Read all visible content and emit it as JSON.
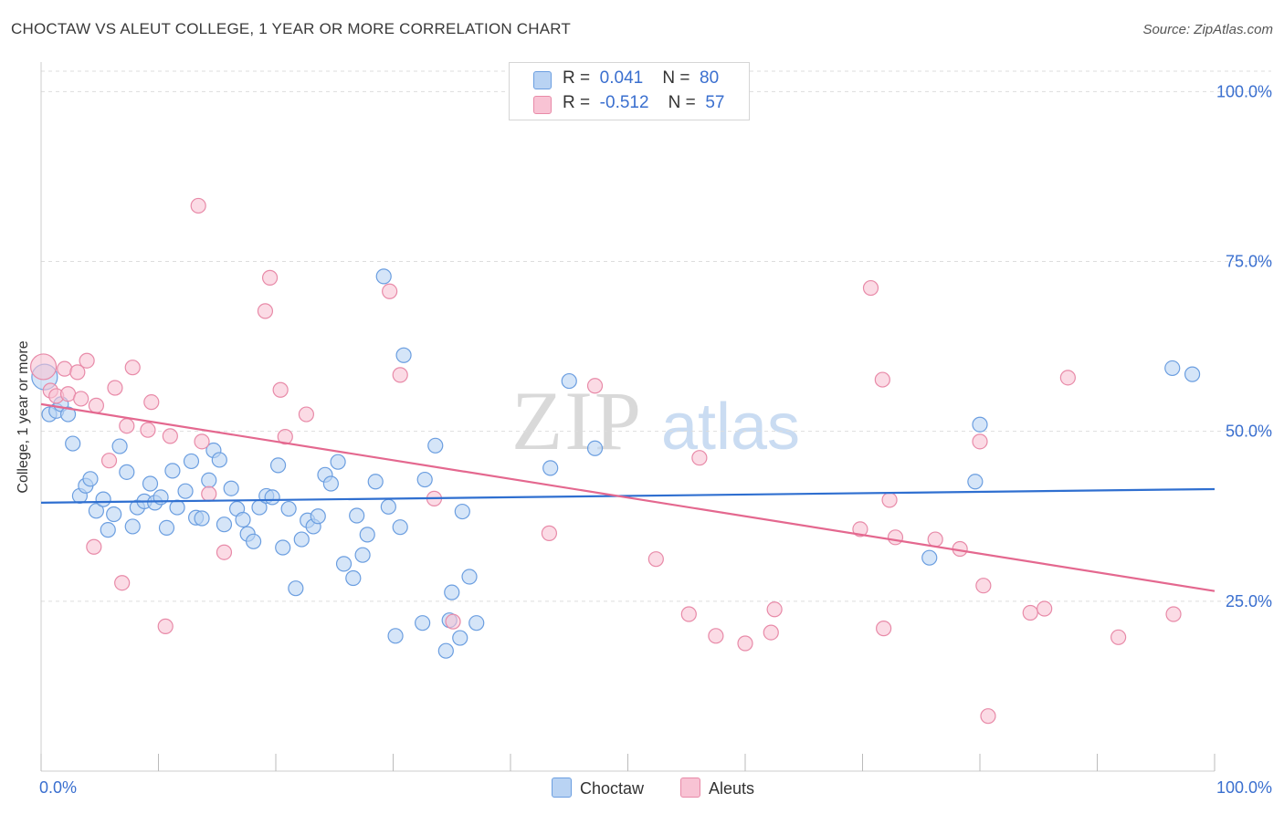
{
  "header": {
    "title": "CHOCTAW VS ALEUT COLLEGE, 1 YEAR OR MORE CORRELATION CHART",
    "source": "Source: ZipAtlas.com"
  },
  "legend": {
    "choctaw": {
      "r_label": "R =",
      "r_value": "0.041",
      "n_label": "N =",
      "n_value": "80"
    },
    "aleuts": {
      "r_label": "R =",
      "r_value": "-0.512",
      "n_label": "N =",
      "n_value": "57"
    }
  },
  "watermark": {
    "zip": "ZIP",
    "atlas": "atlas"
  },
  "colors": {
    "choctaw_fill": "#b9d3f3",
    "choctaw_stroke": "#6b9ee0",
    "choctaw_line": "#2f6fd0",
    "aleuts_fill": "#f8c3d4",
    "aleuts_stroke": "#e88aa8",
    "aleuts_line": "#e4688f",
    "tick_label": "#3a6fcf",
    "grid": "#dddddd"
  },
  "chart_data": {
    "type": "scatter",
    "title": "CHOCTAW VS ALEUT COLLEGE, 1 YEAR OR MORE CORRELATION CHART",
    "xlabel": "",
    "ylabel": "College, 1 year or more",
    "xlim": [
      0,
      100
    ],
    "ylim": [
      0,
      103
    ],
    "x_tick_labels": [
      "0.0%",
      "100.0%"
    ],
    "y_ticks": [
      25,
      50,
      75,
      100
    ],
    "y_tick_labels": [
      "25.0%",
      "50.0%",
      "75.0%",
      "100.0%"
    ],
    "grid": "horizontal dashed",
    "legend_position": "top-center and bottom",
    "series": [
      {
        "name": "Choctaw",
        "r": 0.041,
        "n": 80,
        "trend": {
          "x": [
            0,
            100
          ],
          "y": [
            39.5,
            41.5
          ]
        },
        "points": [
          [
            0.3,
            58
          ],
          [
            0.7,
            52.5
          ],
          [
            1.3,
            53
          ],
          [
            1.7,
            54
          ],
          [
            2.3,
            52.5
          ],
          [
            2.7,
            48.2
          ],
          [
            3.3,
            40.5
          ],
          [
            3.8,
            42
          ],
          [
            4.2,
            43
          ],
          [
            4.7,
            38.3
          ],
          [
            5.3,
            40
          ],
          [
            5.7,
            35.5
          ],
          [
            6.2,
            37.8
          ],
          [
            6.7,
            47.8
          ],
          [
            7.3,
            44
          ],
          [
            7.8,
            36
          ],
          [
            8.2,
            38.8
          ],
          [
            8.8,
            39.7
          ],
          [
            9.3,
            42.3
          ],
          [
            9.7,
            39.5
          ],
          [
            10.2,
            40.3
          ],
          [
            10.7,
            35.8
          ],
          [
            11.2,
            44.2
          ],
          [
            11.6,
            38.8
          ],
          [
            12.3,
            41.2
          ],
          [
            12.8,
            45.6
          ],
          [
            13.2,
            37.3
          ],
          [
            13.7,
            37.2
          ],
          [
            14.3,
            42.8
          ],
          [
            14.7,
            47.2
          ],
          [
            15.2,
            45.8
          ],
          [
            15.6,
            36.3
          ],
          [
            16.2,
            41.6
          ],
          [
            16.7,
            38.6
          ],
          [
            17.2,
            37
          ],
          [
            17.6,
            34.9
          ],
          [
            18.1,
            33.8
          ],
          [
            18.6,
            38.8
          ],
          [
            19.2,
            40.5
          ],
          [
            19.7,
            40.3
          ],
          [
            20.2,
            45
          ],
          [
            20.6,
            32.9
          ],
          [
            21.1,
            38.6
          ],
          [
            21.7,
            26.9
          ],
          [
            22.2,
            34.1
          ],
          [
            22.7,
            36.9
          ],
          [
            23.2,
            36
          ],
          [
            23.6,
            37.5
          ],
          [
            24.2,
            43.6
          ],
          [
            24.7,
            42.3
          ],
          [
            25.3,
            45.5
          ],
          [
            25.8,
            30.5
          ],
          [
            26.6,
            28.4
          ],
          [
            26.9,
            37.6
          ],
          [
            27.4,
            31.8
          ],
          [
            27.8,
            34.8
          ],
          [
            28.5,
            42.6
          ],
          [
            29.2,
            72.8
          ],
          [
            29.6,
            38.9
          ],
          [
            30.2,
            19.9
          ],
          [
            30.6,
            35.9
          ],
          [
            30.9,
            61.2
          ],
          [
            32.5,
            21.8
          ],
          [
            32.7,
            42.9
          ],
          [
            33.6,
            47.9
          ],
          [
            34.5,
            17.7
          ],
          [
            34.8,
            22.2
          ],
          [
            35.0,
            26.3
          ],
          [
            35.7,
            19.6
          ],
          [
            35.9,
            38.2
          ],
          [
            36.5,
            28.6
          ],
          [
            37.1,
            21.8
          ],
          [
            43.4,
            44.6
          ],
          [
            45.0,
            57.4
          ],
          [
            47.2,
            47.5
          ],
          [
            75.7,
            31.4
          ],
          [
            79.6,
            42.6
          ],
          [
            80.0,
            51
          ],
          [
            96.4,
            59.3
          ],
          [
            98.1,
            58.4
          ]
        ]
      },
      {
        "name": "Aleuts",
        "r": -0.512,
        "n": 57,
        "trend": {
          "x": [
            0,
            100
          ],
          "y": [
            54.0,
            26.5
          ]
        },
        "points": [
          [
            0.2,
            59.5
          ],
          [
            0.8,
            56
          ],
          [
            1.3,
            55.2
          ],
          [
            2.0,
            59.2
          ],
          [
            2.3,
            55.5
          ],
          [
            3.1,
            58.7
          ],
          [
            3.4,
            54.8
          ],
          [
            3.9,
            60.4
          ],
          [
            4.5,
            33
          ],
          [
            4.7,
            53.8
          ],
          [
            5.8,
            45.7
          ],
          [
            6.3,
            56.4
          ],
          [
            6.9,
            27.7
          ],
          [
            7.3,
            50.8
          ],
          [
            7.8,
            59.4
          ],
          [
            9.1,
            50.2
          ],
          [
            9.4,
            54.3
          ],
          [
            10.6,
            21.3
          ],
          [
            11.0,
            49.3
          ],
          [
            13.4,
            83.2
          ],
          [
            13.7,
            48.5
          ],
          [
            14.3,
            40.8
          ],
          [
            15.6,
            32.2
          ],
          [
            19.1,
            67.7
          ],
          [
            19.5,
            72.6
          ],
          [
            20.4,
            56.1
          ],
          [
            20.8,
            49.2
          ],
          [
            22.6,
            52.5
          ],
          [
            29.7,
            70.6
          ],
          [
            30.6,
            58.3
          ],
          [
            33.5,
            40.1
          ],
          [
            35.1,
            22
          ],
          [
            43.3,
            35
          ],
          [
            47.2,
            56.7
          ],
          [
            52.4,
            31.2
          ],
          [
            55.2,
            23.1
          ],
          [
            56.1,
            46.1
          ],
          [
            57.5,
            19.9
          ],
          [
            60.0,
            18.8
          ],
          [
            62.2,
            20.4
          ],
          [
            62.5,
            23.8
          ],
          [
            69.8,
            35.6
          ],
          [
            70.7,
            71.1
          ],
          [
            71.7,
            57.6
          ],
          [
            71.8,
            21
          ],
          [
            72.3,
            39.9
          ],
          [
            72.8,
            34.4
          ],
          [
            76.2,
            34.1
          ],
          [
            78.3,
            32.7
          ],
          [
            80.0,
            48.5
          ],
          [
            80.3,
            27.3
          ],
          [
            80.7,
            8.1
          ],
          [
            84.3,
            23.3
          ],
          [
            85.5,
            23.9
          ],
          [
            87.5,
            57.9
          ],
          [
            91.8,
            19.7
          ],
          [
            96.5,
            23.1
          ]
        ]
      }
    ]
  }
}
